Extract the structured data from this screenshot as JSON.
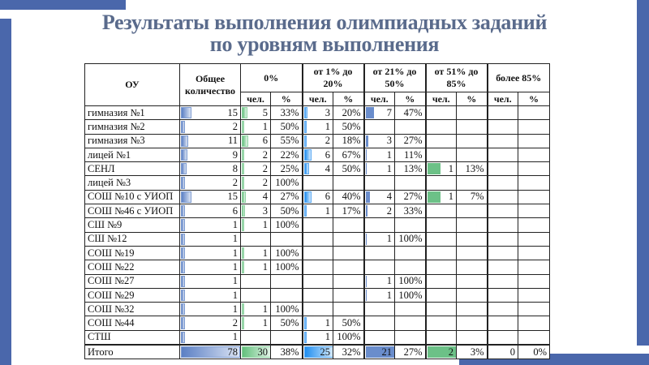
{
  "title": {
    "line1": "Результаты выполнения олимпиадных заданий",
    "line2": "по уровням выполнения"
  },
  "colors": {
    "accent": "#4a67ab",
    "title": "#5a6b8c",
    "bar_total": "#5b7fc4",
    "bar_zero": "#62c07c",
    "bar_low": "#1f8ef0",
    "bar_mid": "#6a8dcc",
    "bar_high": "#6cc187"
  },
  "table": {
    "headers": {
      "ou": "ОУ",
      "total": "Общее количество",
      "groups": [
        "0%",
        "от 1% до 20%",
        "от 21% до 50%",
        "от 51% до 85%",
        "более 85%"
      ],
      "sub_people": "чел.",
      "sub_pct": "%"
    },
    "rows": [
      {
        "name": "гимназия №1",
        "total": "15",
        "g0": [
          "5",
          "33%"
        ],
        "g1": [
          "3",
          "20%"
        ],
        "g2": [
          "7",
          "47%"
        ],
        "g3": [
          "",
          ""
        ],
        "g4": [
          "",
          ""
        ]
      },
      {
        "name": "гимназия №2",
        "total": "2",
        "g0": [
          "1",
          "50%"
        ],
        "g1": [
          "1",
          "50%"
        ],
        "g2": [
          "",
          ""
        ],
        "g3": [
          "",
          ""
        ],
        "g4": [
          "",
          ""
        ]
      },
      {
        "name": "гимназия №3",
        "total": "11",
        "g0": [
          "6",
          "55%"
        ],
        "g1": [
          "2",
          "18%"
        ],
        "g2": [
          "3",
          "27%"
        ],
        "g3": [
          "",
          ""
        ],
        "g4": [
          "",
          ""
        ]
      },
      {
        "name": "лицей №1",
        "total": "9",
        "g0": [
          "2",
          "22%"
        ],
        "g1": [
          "6",
          "67%"
        ],
        "g2": [
          "1",
          "11%"
        ],
        "g3": [
          "",
          ""
        ],
        "g4": [
          "",
          ""
        ]
      },
      {
        "name": "СЕНЛ",
        "total": "8",
        "g0": [
          "2",
          "25%"
        ],
        "g1": [
          "4",
          "50%"
        ],
        "g2": [
          "1",
          "13%"
        ],
        "g3": [
          "1",
          "13%"
        ],
        "g4": [
          "",
          ""
        ]
      },
      {
        "name": "лицей №3",
        "total": "2",
        "g0": [
          "2",
          "100%"
        ],
        "g1": [
          "",
          ""
        ],
        "g2": [
          "",
          ""
        ],
        "g3": [
          "",
          ""
        ],
        "g4": [
          "",
          ""
        ]
      },
      {
        "name": "СОШ №10 с УИОП",
        "total": "15",
        "g0": [
          "4",
          "27%"
        ],
        "g1": [
          "6",
          "40%"
        ],
        "g2": [
          "4",
          "27%"
        ],
        "g3": [
          "1",
          "7%"
        ],
        "g4": [
          "",
          ""
        ]
      },
      {
        "name": "СОШ №46 с УИОП",
        "total": "6",
        "g0": [
          "3",
          "50%"
        ],
        "g1": [
          "1",
          "17%"
        ],
        "g2": [
          "2",
          "33%"
        ],
        "g3": [
          "",
          ""
        ],
        "g4": [
          "",
          ""
        ]
      },
      {
        "name": "СШ №9",
        "total": "1",
        "g0": [
          "1",
          "100%"
        ],
        "g1": [
          "",
          ""
        ],
        "g2": [
          "",
          ""
        ],
        "g3": [
          "",
          ""
        ],
        "g4": [
          "",
          ""
        ]
      },
      {
        "name": "СШ №12",
        "total": "1",
        "g0": [
          "",
          ""
        ],
        "g1": [
          "",
          ""
        ],
        "g2": [
          "1",
          "100%"
        ],
        "g3": [
          "",
          ""
        ],
        "g4": [
          "",
          ""
        ]
      },
      {
        "name": "СОШ №19",
        "total": "1",
        "g0": [
          "1",
          "100%"
        ],
        "g1": [
          "",
          ""
        ],
        "g2": [
          "",
          ""
        ],
        "g3": [
          "",
          ""
        ],
        "g4": [
          "",
          ""
        ]
      },
      {
        "name": "СОШ №22",
        "total": "1",
        "g0": [
          "1",
          "100%"
        ],
        "g1": [
          "",
          ""
        ],
        "g2": [
          "",
          ""
        ],
        "g3": [
          "",
          ""
        ],
        "g4": [
          "",
          ""
        ]
      },
      {
        "name": "СОШ №27",
        "total": "1",
        "g0": [
          "",
          ""
        ],
        "g1": [
          "",
          ""
        ],
        "g2": [
          "1",
          "100%"
        ],
        "g3": [
          "",
          ""
        ],
        "g4": [
          "",
          ""
        ]
      },
      {
        "name": "СОШ №29",
        "total": "1",
        "g0": [
          "",
          ""
        ],
        "g1": [
          "",
          ""
        ],
        "g2": [
          "1",
          "100%"
        ],
        "g3": [
          "",
          ""
        ],
        "g4": [
          "",
          ""
        ]
      },
      {
        "name": "СОШ №32",
        "total": "1",
        "g0": [
          "1",
          "100%"
        ],
        "g1": [
          "",
          ""
        ],
        "g2": [
          "",
          ""
        ],
        "g3": [
          "",
          ""
        ],
        "g4": [
          "",
          ""
        ]
      },
      {
        "name": "СОШ №44",
        "total": "2",
        "g0": [
          "1",
          "50%"
        ],
        "g1": [
          "1",
          "50%"
        ],
        "g2": [
          "",
          ""
        ],
        "g3": [
          "",
          ""
        ],
        "g4": [
          "",
          ""
        ]
      },
      {
        "name": "СТШ",
        "total": "1",
        "g0": [
          "",
          ""
        ],
        "g1": [
          "1",
          "100%"
        ],
        "g2": [
          "",
          ""
        ],
        "g3": [
          "",
          ""
        ],
        "g4": [
          "",
          ""
        ]
      }
    ],
    "totals": {
      "name": "Итого",
      "total": "78",
      "g0": [
        "30",
        "38%"
      ],
      "g1": [
        "25",
        "32%"
      ],
      "g2": [
        "21",
        "27%"
      ],
      "g3": [
        "2",
        "3%"
      ],
      "g4": [
        "0",
        "0%"
      ]
    }
  }
}
